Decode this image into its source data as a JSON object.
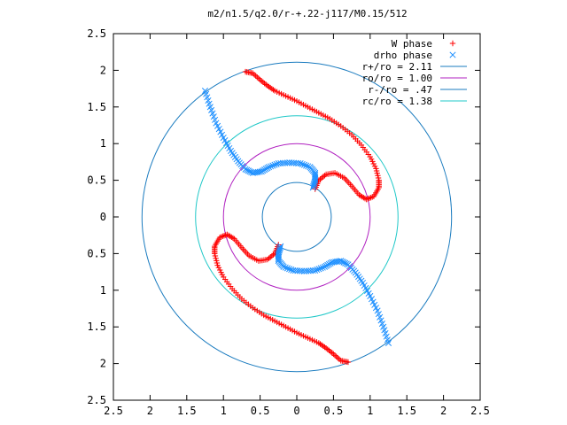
{
  "chart_data": {
    "type": "scatter",
    "title": "m2/n1.5/q2.0/r-+.22-j117/M0.15/512",
    "xlabel": "",
    "ylabel": "",
    "xlim": [
      -2.5,
      2.5
    ],
    "ylim": [
      -2.5,
      2.5
    ],
    "x_tick_values": [
      -2.5,
      -2,
      -1.5,
      -1,
      -0.5,
      0,
      0.5,
      1,
      1.5,
      2,
      2.5
    ],
    "x_tick_labels": [
      "2.5",
      "2",
      "1.5",
      "1",
      "0.5",
      "0",
      "0.5",
      "1",
      "1.5",
      "2",
      "2.5"
    ],
    "y_tick_values": [
      2.5,
      2,
      1.5,
      1,
      0.5,
      0,
      -0.5,
      -1,
      -1.5,
      -2,
      -2.5
    ],
    "y_tick_labels": [
      "2.5",
      "2",
      "1.5",
      "1",
      "0.5",
      "0",
      "0.5",
      "1",
      "1.5",
      "2",
      "2.5"
    ],
    "grid": false,
    "legend_position": "top-right",
    "series": [
      {
        "name": "W phase",
        "marker": "+",
        "color": "#ff0000",
        "points": [
          [
            -0.7,
            1.98
          ],
          [
            -0.6,
            1.96
          ],
          [
            -0.5,
            1.87
          ],
          [
            -0.4,
            1.79
          ],
          [
            -0.3,
            1.72
          ],
          [
            -0.15,
            1.65
          ],
          [
            0.0,
            1.58
          ],
          [
            0.15,
            1.5
          ],
          [
            0.3,
            1.42
          ],
          [
            0.45,
            1.34
          ],
          [
            0.6,
            1.24
          ],
          [
            0.75,
            1.12
          ],
          [
            0.88,
            0.98
          ],
          [
            1.0,
            0.82
          ],
          [
            1.08,
            0.66
          ],
          [
            1.12,
            0.5
          ],
          [
            1.12,
            0.4
          ],
          [
            1.05,
            0.28
          ],
          [
            0.95,
            0.24
          ],
          [
            0.85,
            0.3
          ],
          [
            0.75,
            0.42
          ],
          [
            0.65,
            0.53
          ],
          [
            0.52,
            0.6
          ],
          [
            0.4,
            0.58
          ],
          [
            0.3,
            0.5
          ],
          [
            0.25,
            0.38
          ],
          [
            -0.25,
            -0.38
          ],
          [
            -0.3,
            -0.5
          ],
          [
            -0.4,
            -0.58
          ],
          [
            -0.52,
            -0.6
          ],
          [
            -0.65,
            -0.53
          ],
          [
            -0.75,
            -0.42
          ],
          [
            -0.85,
            -0.3
          ],
          [
            -0.95,
            -0.24
          ],
          [
            -1.05,
            -0.28
          ],
          [
            -1.12,
            -0.4
          ],
          [
            -1.12,
            -0.5
          ],
          [
            -1.08,
            -0.66
          ],
          [
            -1.0,
            -0.82
          ],
          [
            -0.88,
            -0.98
          ],
          [
            -0.75,
            -1.12
          ],
          [
            -0.6,
            -1.24
          ],
          [
            -0.45,
            -1.34
          ],
          [
            -0.3,
            -1.42
          ],
          [
            -0.15,
            -1.5
          ],
          [
            0.0,
            -1.58
          ],
          [
            0.15,
            -1.65
          ],
          [
            0.3,
            -1.72
          ],
          [
            0.4,
            -1.79
          ],
          [
            0.5,
            -1.87
          ],
          [
            0.6,
            -1.96
          ],
          [
            0.7,
            -1.98
          ]
        ]
      },
      {
        "name": "drho phase",
        "marker": "x",
        "color": "#1e90ff",
        "points": [
          [
            -1.25,
            1.72
          ],
          [
            -1.18,
            1.5
          ],
          [
            -1.1,
            1.28
          ],
          [
            -1.0,
            1.08
          ],
          [
            -0.9,
            0.9
          ],
          [
            -0.8,
            0.76
          ],
          [
            -0.7,
            0.65
          ],
          [
            -0.6,
            0.6
          ],
          [
            -0.48,
            0.62
          ],
          [
            -0.38,
            0.68
          ],
          [
            -0.25,
            0.73
          ],
          [
            -0.1,
            0.74
          ],
          [
            0.05,
            0.73
          ],
          [
            0.18,
            0.68
          ],
          [
            0.25,
            0.6
          ],
          [
            0.25,
            0.5
          ],
          [
            0.22,
            0.4
          ],
          [
            -0.22,
            -0.4
          ],
          [
            -0.25,
            -0.5
          ],
          [
            -0.25,
            -0.6
          ],
          [
            -0.18,
            -0.68
          ],
          [
            -0.05,
            -0.73
          ],
          [
            0.1,
            -0.74
          ],
          [
            0.25,
            -0.73
          ],
          [
            0.38,
            -0.68
          ],
          [
            0.48,
            -0.62
          ],
          [
            0.6,
            -0.6
          ],
          [
            0.7,
            -0.65
          ],
          [
            0.8,
            -0.76
          ],
          [
            0.9,
            -0.9
          ],
          [
            1.0,
            -1.08
          ],
          [
            1.1,
            -1.28
          ],
          [
            1.18,
            -1.5
          ],
          [
            1.25,
            -1.72
          ]
        ]
      },
      {
        "name": "r+/ro = 2.11",
        "type": "circle",
        "radius": 2.11,
        "color": "#1a7bbf"
      },
      {
        "name": "ro/ro = 1.00",
        "type": "circle",
        "radius": 1.0,
        "color": "#b020c0"
      },
      {
        "name": "r-/ro = .47",
        "type": "circle",
        "radius": 0.47,
        "color": "#1a7bbf"
      },
      {
        "name": "rc/ro = 1.38",
        "type": "circle",
        "radius": 1.38,
        "color": "#20c8c8"
      }
    ]
  }
}
